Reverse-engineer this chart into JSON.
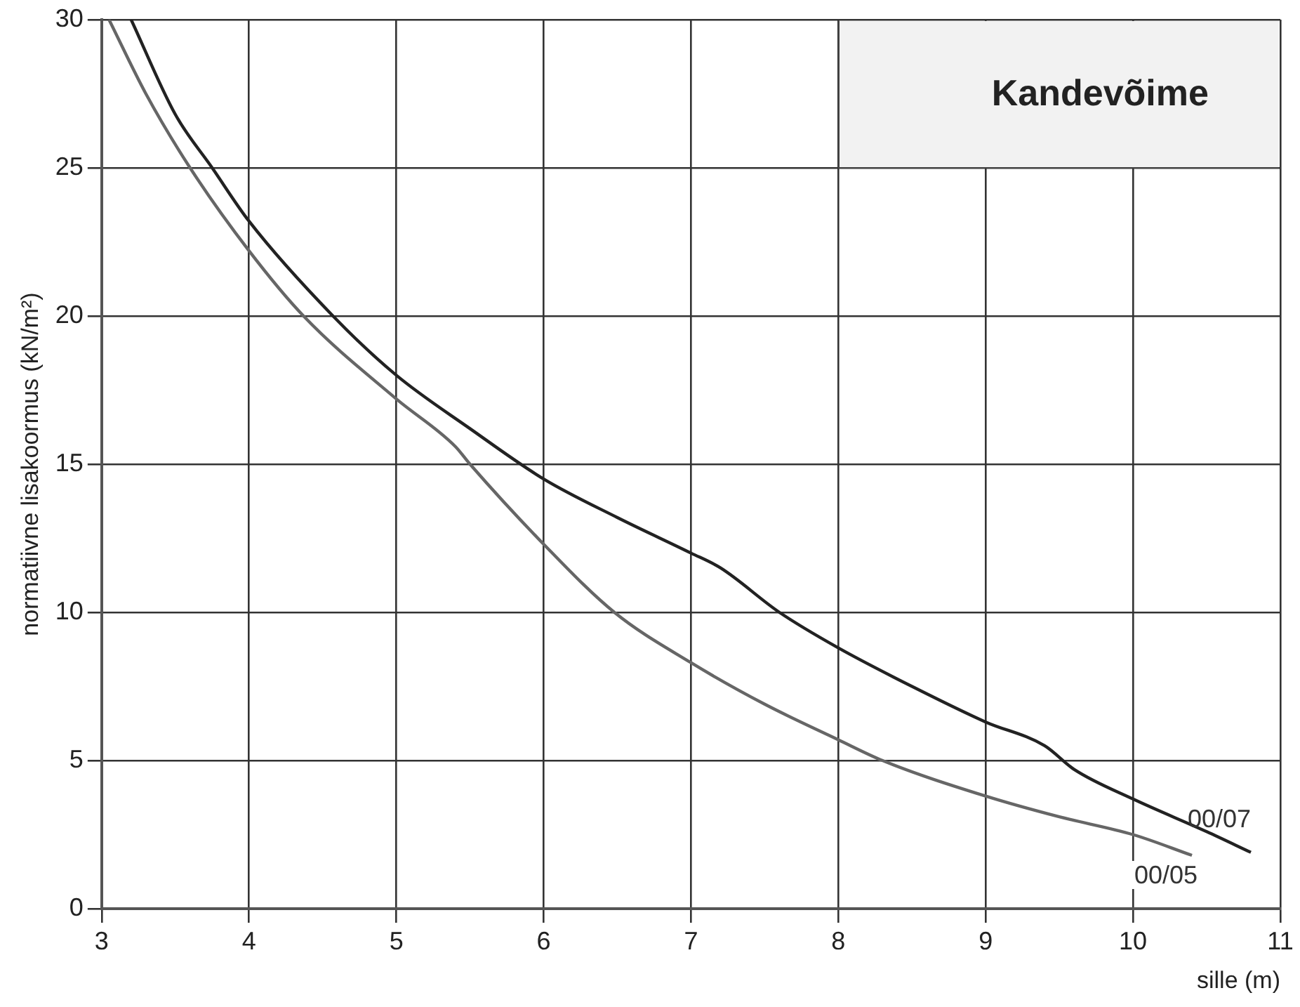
{
  "chart_data": {
    "type": "line",
    "title": "Kandevõime",
    "xlabel": "sille (m)",
    "ylabel": "normatiivne lisakoormus (kN/m²)",
    "xlim": [
      3,
      11
    ],
    "xticks": [
      3,
      4,
      5,
      6,
      7,
      8,
      9,
      10,
      11
    ],
    "ylim": [
      0,
      30
    ],
    "yticks": [
      0,
      5,
      10,
      15,
      20,
      25,
      30
    ],
    "grid": true,
    "legend": false,
    "marker": "none",
    "line_style": "solid",
    "series": [
      {
        "name": "00/07",
        "color": "#222222",
        "x": [
          3.2,
          3.5,
          3.75,
          4,
          4.57,
          5,
          5.5,
          6,
          6.5,
          7,
          7.2,
          7.6,
          8,
          8.5,
          9,
          9.4,
          9.6,
          10,
          10.5,
          10.8
        ],
        "values": [
          30,
          26.8,
          25,
          23.2,
          20,
          18,
          16.2,
          14.5,
          13.2,
          12,
          11.5,
          10,
          8.8,
          7.5,
          6.3,
          5.5,
          4.7,
          3.7,
          2.6,
          1.9
        ]
      },
      {
        "name": "00/05",
        "color": "#666666",
        "x": [
          3.05,
          3.3,
          3.6,
          4,
          4.37,
          5,
          5.4,
          5.5,
          6,
          6.48,
          7,
          7.5,
          8,
          8.3,
          9,
          9.5,
          10,
          10.4
        ],
        "values": [
          30,
          27.5,
          25,
          22.2,
          20,
          17.2,
          15.6,
          15,
          12.3,
          10,
          8.3,
          6.9,
          5.7,
          5,
          3.8,
          3.1,
          2.5,
          1.8
        ]
      }
    ]
  }
}
